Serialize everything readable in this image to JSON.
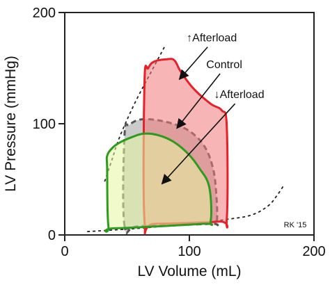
{
  "chart_data": {
    "type": "area",
    "xlabel": "LV Volume (mL)",
    "ylabel": "LV Pressure (mmHg)",
    "xlim": [
      0,
      200
    ],
    "ylim": [
      0,
      200
    ],
    "xticks": [
      "0",
      "100",
      "200"
    ],
    "yticks": [
      "0",
      "100",
      "200"
    ],
    "grid": false,
    "series": [
      {
        "name": "Control",
        "color": "#555555",
        "fill": "#a0a0a0",
        "line": "dashed",
        "points": [
          [
            48,
            8
          ],
          [
            48,
            90
          ],
          [
            52,
            99
          ],
          [
            62,
            104
          ],
          [
            80,
            102
          ],
          [
            96,
            96
          ],
          [
            106,
            88
          ],
          [
            113,
            78
          ],
          [
            118,
            64
          ],
          [
            121,
            45
          ],
          [
            122,
            12
          ],
          [
            116,
            10
          ],
          [
            60,
            8
          ],
          [
            48,
            8
          ]
        ]
      },
      {
        "name": "↑Afterload",
        "color": "#e8202a",
        "fill": "#f07878",
        "line": "solid",
        "points": [
          [
            64,
            12
          ],
          [
            64,
            138
          ],
          [
            67,
            150
          ],
          [
            72,
            156
          ],
          [
            82,
            158
          ],
          [
            88,
            157
          ],
          [
            93,
            147
          ],
          [
            103,
            132
          ],
          [
            117,
            118
          ],
          [
            126,
            112
          ],
          [
            130,
            98
          ],
          [
            130,
            14
          ],
          [
            124,
            12
          ],
          [
            72,
            10
          ],
          [
            64,
            12
          ]
        ]
      },
      {
        "name": "↓Afterload",
        "color": "#2e9a1e",
        "fill": "#e6f5a0",
        "line": "solid",
        "points": [
          [
            35,
            8
          ],
          [
            34,
            60
          ],
          [
            34,
            71
          ],
          [
            38,
            78
          ],
          [
            44,
            83
          ],
          [
            54,
            88
          ],
          [
            63,
            91
          ],
          [
            74,
            90
          ],
          [
            87,
            84
          ],
          [
            99,
            73
          ],
          [
            108,
            60
          ],
          [
            116,
            43
          ],
          [
            117,
            12
          ],
          [
            110,
            10
          ],
          [
            40,
            6
          ],
          [
            35,
            8
          ]
        ]
      }
    ],
    "reference_curves": {
      "esvpr": [
        [
          32,
          48
        ],
        [
          38,
          68
        ],
        [
          44,
          88
        ],
        [
          56,
          118
        ],
        [
          70,
          148
        ],
        [
          80,
          169
        ]
      ],
      "edpvr": [
        [
          18,
          3
        ],
        [
          60,
          6
        ],
        [
          100,
          10
        ],
        [
          130,
          14
        ],
        [
          150,
          18
        ],
        [
          163,
          26
        ],
        [
          170,
          35
        ],
        [
          176,
          45
        ]
      ]
    },
    "annotations": [
      {
        "text": "↑Afterload",
        "at": [
          118,
          174
        ],
        "arrow_to": [
          92,
          140
        ]
      },
      {
        "text": "Control",
        "at": [
          128,
          150
        ],
        "arrow_to": [
          90,
          96
        ]
      },
      {
        "text": "↓Afterload",
        "at": [
          140,
          123
        ],
        "arrow_to": [
          78,
          46
        ]
      }
    ],
    "credit": "RK '15"
  }
}
